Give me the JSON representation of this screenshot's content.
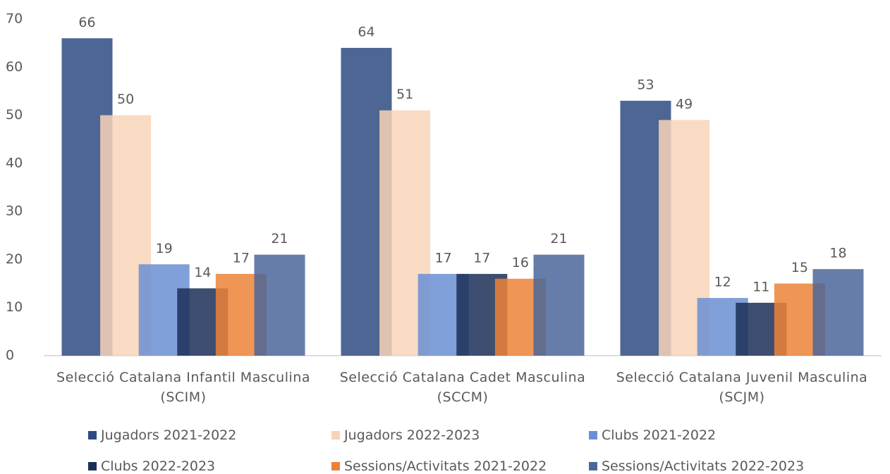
{
  "chart_data": {
    "type": "bar",
    "categories": [
      "Selecció Catalana Infantil Masculina (SCIM)",
      "Selecció Catalana Cadet Masculina (SCCM)",
      "Selecció Catalana Juvenil Masculina (SCJM)"
    ],
    "series": [
      {
        "name": "Jugadors 2021-2022",
        "color": "#2f4b80",
        "values": [
          66,
          64,
          53
        ]
      },
      {
        "name": "Jugadors 2022-2023",
        "color": "#f8d3b9",
        "values": [
          50,
          51,
          49
        ]
      },
      {
        "name": "Clubs 2021-2022",
        "color": "#6b8fd3",
        "values": [
          19,
          17,
          12
        ]
      },
      {
        "name": "Clubs 2022-2023",
        "color": "#1c2f57",
        "values": [
          14,
          17,
          11
        ]
      },
      {
        "name": "Sessions/Activitats 2021-2022",
        "color": "#ec8237",
        "values": [
          17,
          16,
          15
        ]
      },
      {
        "name": "Sessions/Activitats 2022-2023",
        "color": "#4c669a",
        "values": [
          21,
          21,
          18
        ]
      }
    ],
    "ylim": [
      0,
      70
    ],
    "yticks": [
      0,
      10,
      20,
      30,
      40,
      50,
      60,
      70
    ],
    "grid": false
  }
}
